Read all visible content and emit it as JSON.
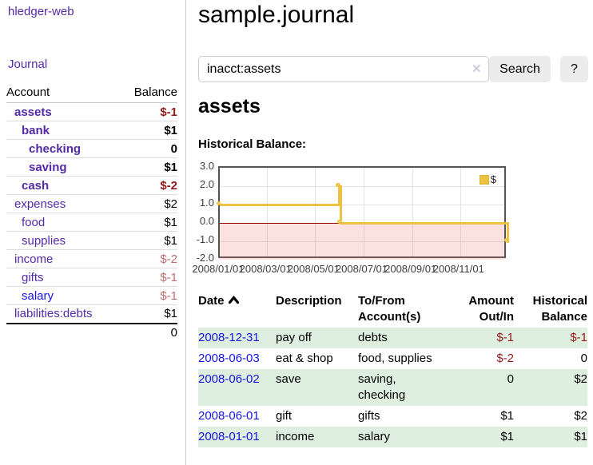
{
  "sidebar": {
    "brand": "hledger-web",
    "journal_label": "Journal",
    "headers": [
      "Account",
      "Balance"
    ],
    "rows": [
      {
        "name": "assets",
        "balance": "$-1",
        "depth": 1,
        "bold": true,
        "neg": "strong",
        "link": "visited"
      },
      {
        "name": "bank",
        "balance": "$1",
        "depth": 2,
        "bold": true,
        "neg": "",
        "link": "visited"
      },
      {
        "name": "checking",
        "balance": "0",
        "depth": 3,
        "bold": true,
        "neg": "",
        "link": "visited"
      },
      {
        "name": "saving",
        "balance": "$1",
        "depth": 3,
        "bold": true,
        "neg": "",
        "link": "visited"
      },
      {
        "name": "cash",
        "balance": "$-2",
        "depth": 2,
        "bold": true,
        "neg": "strong",
        "link": "visited"
      },
      {
        "name": "expenses",
        "balance": "$2",
        "depth": 1,
        "bold": false,
        "neg": "",
        "link": "visited"
      },
      {
        "name": "food",
        "balance": "$1",
        "depth": 2,
        "bold": false,
        "neg": "",
        "link": "visited"
      },
      {
        "name": "supplies",
        "balance": "$1",
        "depth": 2,
        "bold": false,
        "neg": "",
        "link": "visited"
      },
      {
        "name": "income",
        "balance": "$-2",
        "depth": 1,
        "bold": false,
        "neg": "soft",
        "link": "visited"
      },
      {
        "name": "gifts",
        "balance": "$-1",
        "depth": 2,
        "bold": false,
        "neg": "soft",
        "link": "visited"
      },
      {
        "name": "salary",
        "balance": "$-1",
        "depth": 2,
        "bold": false,
        "neg": "soft",
        "link": "unvisited"
      },
      {
        "name": "liabilities:debts",
        "balance": "$1",
        "depth": 1,
        "bold": false,
        "neg": "",
        "link": "visited"
      }
    ],
    "total": "0"
  },
  "main": {
    "title": "sample.journal",
    "search": {
      "value": "inacct:assets",
      "clear_icon": "✕",
      "button_label": "Search",
      "help_label": "?"
    },
    "account_heading": "assets",
    "chart_heading": "Historical Balance:"
  },
  "chart_data": {
    "type": "line",
    "title": "Historical Balance:",
    "step": true,
    "x_range": [
      "2008-01-01",
      "2008-12-31"
    ],
    "ylim": [
      -2,
      3
    ],
    "y_ticks": [
      {
        "value": 3.0,
        "label": "3.0"
      },
      {
        "value": 2.0,
        "label": "2.0"
      },
      {
        "value": 1.0,
        "label": "1.0"
      },
      {
        "value": 0.0,
        "label": "0.0"
      },
      {
        "value": -1.0,
        "label": "-1.0"
      },
      {
        "value": -2.0,
        "label": "-2.0"
      }
    ],
    "x_ticks": [
      {
        "date": "2008-01-01",
        "label": "2008/01/01"
      },
      {
        "date": "2008-03-01",
        "label": "2008/03/01"
      },
      {
        "date": "2008-05-01",
        "label": "2008/05/01"
      },
      {
        "date": "2008-07-01",
        "label": "2008/07/01"
      },
      {
        "date": "2008-09-01",
        "label": "2008/09/01"
      },
      {
        "date": "2008-11-01",
        "label": "2008/11/01"
      }
    ],
    "grid": true,
    "legend_position": "top-right",
    "negative_region": {
      "below": 0,
      "color": "rgba(242,105,105,0.20)"
    },
    "zero_line_color": "#990000",
    "series": [
      {
        "name": "$",
        "color": "#edc240",
        "points": [
          {
            "date": "2008-01-01",
            "value": 1
          },
          {
            "date": "2008-06-01",
            "value": 2
          },
          {
            "date": "2008-06-02",
            "value": 2
          },
          {
            "date": "2008-06-03",
            "value": 0
          },
          {
            "date": "2008-12-31",
            "value": -1
          }
        ]
      }
    ]
  },
  "register": {
    "headers": [
      "Date",
      "Description",
      "To/From\nAccount(s)",
      "Amount\nOut/In",
      "Historical\nBalance"
    ],
    "sort": {
      "column": "Date",
      "direction": "ascending"
    },
    "rows": [
      {
        "date": "2008-12-31",
        "description": "pay off",
        "accounts": "debts",
        "amount": "$-1",
        "amount_negative": true,
        "balance": "$-1",
        "balance_negative": true
      },
      {
        "date": "2008-06-03",
        "description": "eat & shop",
        "accounts": "food, supplies",
        "amount": "$-2",
        "amount_negative": true,
        "balance": "0",
        "balance_negative": false
      },
      {
        "date": "2008-06-02",
        "description": "save",
        "accounts": "saving,\nchecking",
        "amount": "0",
        "amount_negative": false,
        "balance": "$2",
        "balance_negative": false
      },
      {
        "date": "2008-06-01",
        "description": "gift",
        "accounts": "gifts",
        "amount": "$1",
        "amount_negative": false,
        "balance": "$2",
        "balance_negative": false
      },
      {
        "date": "2008-01-01",
        "description": "income",
        "accounts": "salary",
        "amount": "$1",
        "amount_negative": false,
        "balance": "$1",
        "balance_negative": false
      }
    ]
  }
}
